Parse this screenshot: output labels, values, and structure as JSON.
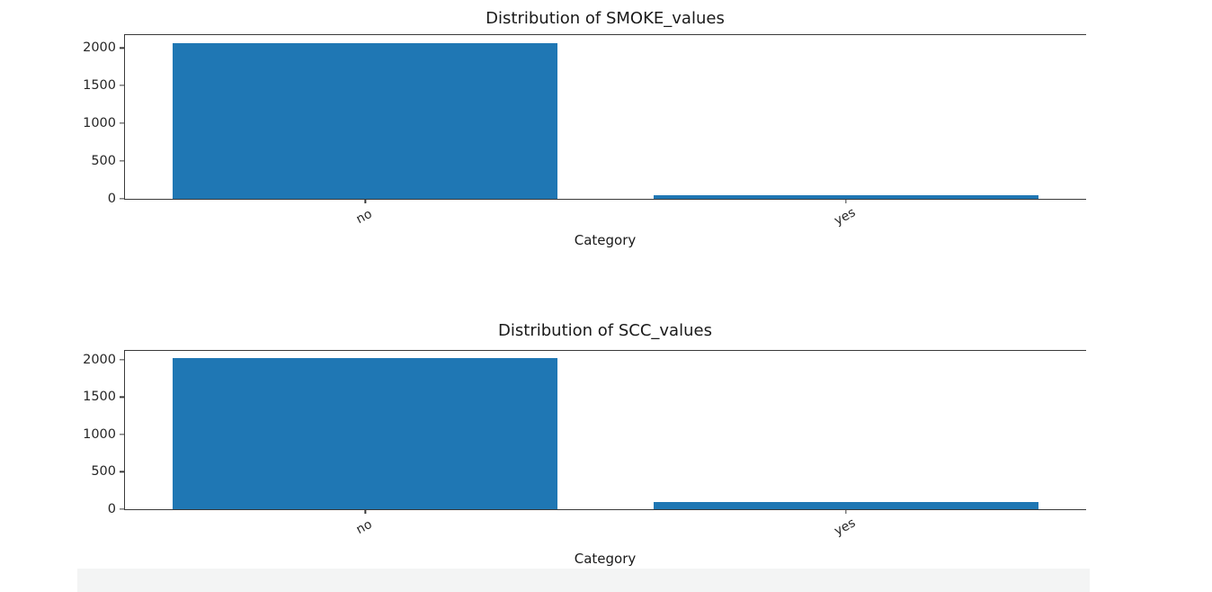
{
  "page": {
    "background": "#ffffff",
    "axis_color": "#3a3a3a",
    "text_color": "#262626"
  },
  "chart_data": [
    {
      "type": "bar",
      "title": "Distribution of SMOKE_values",
      "xlabel": "Category",
      "ylabel": "",
      "categories": [
        "no",
        "yes"
      ],
      "values": [
        2067,
        44
      ],
      "yticks": [
        0,
        500,
        1000,
        1500,
        2000
      ],
      "ylim": [
        0,
        2170
      ],
      "bar_color": "#1f77b4",
      "bar_width_ratio": 0.8,
      "xtick_rotation_deg": -28,
      "grid": false,
      "legend": "none"
    },
    {
      "type": "bar",
      "title": "Distribution of SCC_values",
      "xlabel": "Category",
      "ylabel": "",
      "categories": [
        "no",
        "yes"
      ],
      "values": [
        2015,
        96
      ],
      "yticks": [
        0,
        500,
        1000,
        1500,
        2000
      ],
      "ylim": [
        0,
        2116
      ],
      "bar_color": "#1f77b4",
      "bar_width_ratio": 0.8,
      "xtick_rotation_deg": -28,
      "grid": false,
      "legend": "none"
    }
  ]
}
